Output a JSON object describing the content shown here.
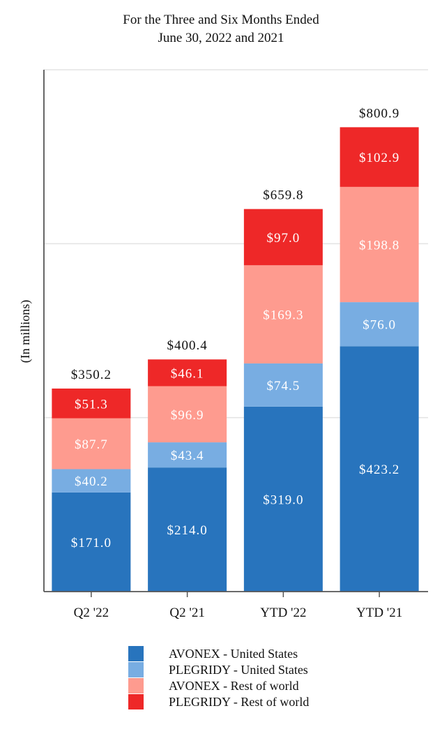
{
  "chart_data": {
    "type": "bar",
    "stacked": true,
    "title": "For the Three and Six Months Ended",
    "subtitle": "June 30, 2022 and 2021",
    "xlabel": "",
    "ylabel": "(In millions)",
    "ylim": [
      0,
      900
    ],
    "grid": true,
    "legend_position": "bottom",
    "categories": [
      "Q2 '22",
      "Q2 '21",
      "YTD '22",
      "YTD '21"
    ],
    "totals": [
      "$350.2",
      "$400.4",
      "$659.8",
      "$800.9"
    ],
    "series": [
      {
        "name": "AVONEX - United States",
        "color": "#2874bd",
        "values": [
          171.0,
          214.0,
          319.0,
          423.2
        ],
        "labels": [
          "$171.0",
          "$214.0",
          "$319.0",
          "$423.2"
        ]
      },
      {
        "name": "PLEGRIDY - United States",
        "color": "#78ade2",
        "values": [
          40.2,
          43.4,
          74.5,
          76.0
        ],
        "labels": [
          "$40.2",
          "$43.4",
          "$74.5",
          "$76.0"
        ]
      },
      {
        "name": "AVONEX - Rest of world",
        "color": "#fe9b8f",
        "values": [
          87.7,
          96.9,
          169.3,
          198.8
        ],
        "labels": [
          "$87.7",
          "$96.9",
          "$169.3",
          "$198.8"
        ]
      },
      {
        "name": "PLEGRIDY - Rest of world",
        "color": "#ee2828",
        "values": [
          51.3,
          46.1,
          97.0,
          102.9
        ],
        "labels": [
          "$51.3",
          "$46.1",
          "$97.0",
          "$102.9"
        ]
      }
    ]
  }
}
